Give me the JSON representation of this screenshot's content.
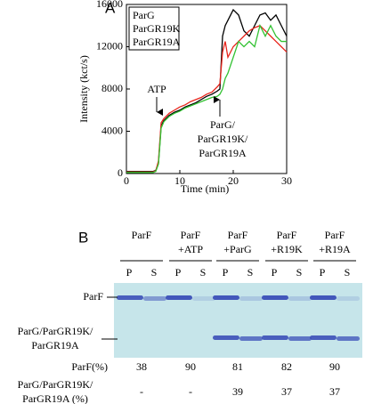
{
  "chart_data": {
    "type": "line",
    "panel": "A",
    "xlabel": "Time (min)",
    "ylabel": "Intensity (kct/s)",
    "x": [
      0,
      1,
      2,
      3,
      4,
      5,
      5.5,
      6,
      6.5,
      7,
      8,
      9,
      10,
      11,
      12,
      13,
      14,
      15,
      16,
      17,
      17.5,
      18,
      18.5,
      19,
      20,
      21,
      22,
      23,
      24,
      25,
      26,
      27,
      28,
      29,
      30
    ],
    "series": [
      {
        "name": "ParG",
        "color": "#000000",
        "values": [
          200,
          200,
          200,
          200,
          200,
          200,
          300,
          1000,
          4500,
          5000,
          5500,
          5800,
          6000,
          6300,
          6500,
          6700,
          7000,
          7300,
          7500,
          7800,
          8000,
          13000,
          14000,
          14500,
          15500,
          15000,
          13500,
          13000,
          14000,
          15000,
          15200,
          14500,
          15000,
          14000,
          13000
        ]
      },
      {
        "name": "ParGR19K",
        "color": "#e8251c",
        "values": [
          150,
          150,
          150,
          150,
          150,
          150,
          250,
          1200,
          4800,
          5200,
          5700,
          6000,
          6300,
          6500,
          6800,
          7000,
          7200,
          7500,
          7700,
          8200,
          8500,
          11500,
          12500,
          11000,
          12000,
          12500,
          13000,
          13500,
          13800,
          14000,
          13500,
          13000,
          12500,
          12000,
          11500
        ]
      },
      {
        "name": "ParGR19A",
        "color": "#33c233",
        "values": [
          100,
          100,
          100,
          100,
          100,
          100,
          200,
          900,
          4300,
          4900,
          5400,
          5700,
          5900,
          6200,
          6400,
          6600,
          6800,
          7000,
          7200,
          7300,
          7500,
          8000,
          9000,
          9500,
          11000,
          12500,
          12000,
          12500,
          12000,
          14000,
          13000,
          14000,
          13000,
          12500,
          12500
        ]
      }
    ],
    "xlim": [
      0,
      30
    ],
    "xticks": [
      0,
      10,
      20,
      30
    ],
    "ylim": [
      0,
      16000
    ],
    "yticks": [
      0,
      4000,
      8000,
      12000,
      16000
    ],
    "legend": "upper left",
    "annotations": [
      [
        "ATP"
      ],
      [
        "ParG/",
        "ParGR19K/",
        "ParGR19A"
      ]
    ]
  },
  "gel": {
    "panel": "B",
    "lanes": [
      [
        "ParF"
      ],
      [
        "ParF",
        "+ATP"
      ],
      [
        "ParF",
        "+ParG"
      ],
      [
        "ParF",
        "+R19K"
      ],
      [
        "ParF",
        "+R19A"
      ]
    ],
    "fractions": [
      "P",
      "S"
    ],
    "bands": [
      [
        "ParF"
      ],
      [
        "ParG/ParGR19K/",
        "ParGR19A"
      ]
    ],
    "rows": [
      {
        "label": [
          "ParF(%)"
        ],
        "values": [
          "38",
          "90",
          "81",
          "82",
          "90"
        ]
      },
      {
        "label": [
          "ParG/ParGR19K/",
          "ParGR19A (%)"
        ],
        "values": [
          "-",
          "-",
          "39",
          "37",
          "37"
        ]
      }
    ]
  }
}
